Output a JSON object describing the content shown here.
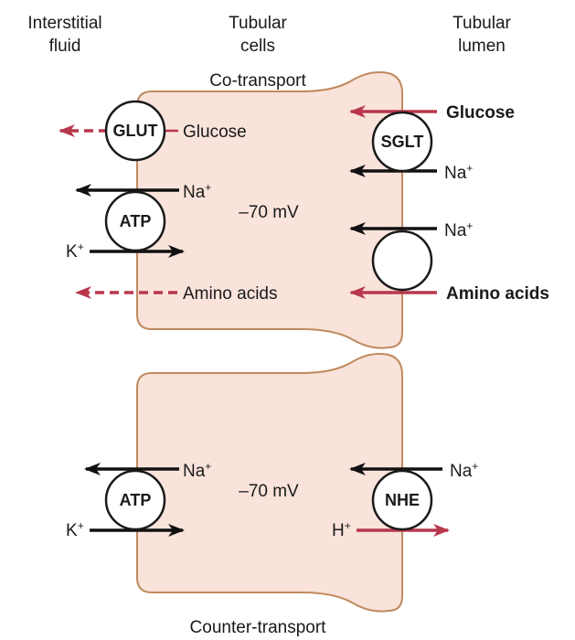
{
  "headers": {
    "interstitial": [
      "Interstitial",
      "fluid"
    ],
    "tubular_cells": [
      "Tubular",
      "cells"
    ],
    "tubular_lumen": [
      "Tubular",
      "lumen"
    ]
  },
  "top_cell": {
    "caption": "Co-transport",
    "potential": "–70 mV",
    "glut_label": "GLUT",
    "glucose_basolateral": "Glucose",
    "na_basolateral": "Na",
    "k_basolateral": "K",
    "atp_label": "ATP",
    "amino_acids_basolateral": "Amino acids",
    "sglt_label": "SGLT",
    "glucose_lumen": "Glucose",
    "na_lumen_1": "Na",
    "na_lumen_2": "Na",
    "amino_acids_lumen": "Amino acids"
  },
  "bottom_cell": {
    "caption": "Counter-transport",
    "potential": "–70 mV",
    "atp_label": "ATP",
    "na_basolateral": "Na",
    "k_basolateral": "K",
    "nhe_label": "NHE",
    "na_lumen": "Na",
    "h_lumen": "H"
  },
  "ion_charge": "+",
  "colors": {
    "cell_fill": "#f9e3da",
    "cell_border": "#c08a5f",
    "arrow_black": "#111111",
    "arrow_red": "#b8374c"
  }
}
